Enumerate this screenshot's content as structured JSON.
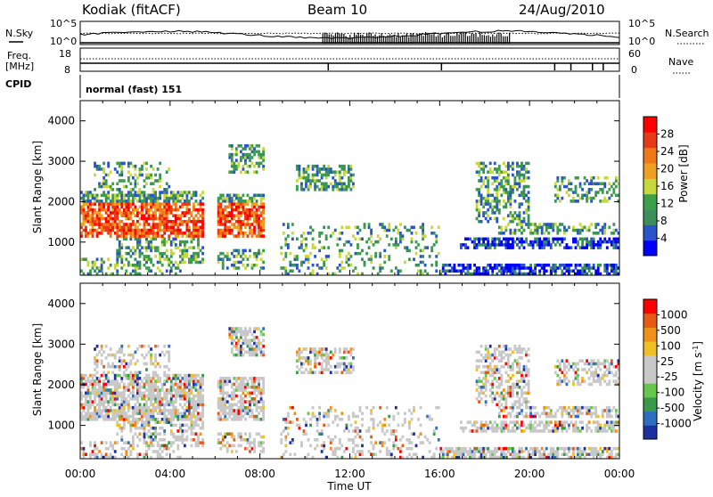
{
  "header": {
    "station": "Kodiak (fitACF)",
    "beam": "Beam 10",
    "date": "24/Aug/2010"
  },
  "top_panels": {
    "nsky_label": "N.Sky",
    "nsearch_label": "N.Search",
    "log_top_tick": "10^5",
    "log_bottom_tick": "10^0",
    "freq_label": "Freq.",
    "freq_unit": "[MHz]",
    "freq_ticks": [
      "18",
      "8"
    ],
    "nave_label": "Nave",
    "nave_ticks": [
      "60",
      "0"
    ],
    "cpid_label": "CPID",
    "cpid_text": "normal (fast) 151"
  },
  "colors": {
    "power_scale": [
      "#0000ff",
      "#2a55c8",
      "#3a8f5a",
      "#3ca04a",
      "#c8d83c",
      "#f0a020",
      "#f07818",
      "#e83a14",
      "#ff0000"
    ],
    "velocity_scale": [
      "#1e2fa0",
      "#2e6ec0",
      "#3a9a4c",
      "#66c84a",
      "#c8c8c8",
      "#c8c8c8",
      "#f0c020",
      "#f09018",
      "#e85a14",
      "#ff0000"
    ]
  },
  "chart_data": [
    {
      "type": "heatmap",
      "name": "power",
      "ylabel": "Slant Range [km]",
      "xlabel": "Time UT",
      "x_ticks": [
        "00:00",
        "04:00",
        "08:00",
        "12:00",
        "16:00",
        "20:00",
        "00:00"
      ],
      "y_ticks": [
        "1000",
        "2000",
        "3000",
        "4000"
      ],
      "ylim": [
        180,
        4500
      ],
      "colorbar_label": "Power [dB]",
      "colorbar_ticks": [
        "4",
        "8",
        "12",
        "16",
        "20",
        "24",
        "28"
      ],
      "colorbar_range": [
        0,
        30
      ]
    },
    {
      "type": "heatmap",
      "name": "velocity",
      "ylabel": "Slant Range [km]",
      "xlabel": "Time UT",
      "x_ticks": [
        "00:00",
        "04:00",
        "08:00",
        "12:00",
        "16:00",
        "20:00",
        "00:00"
      ],
      "y_ticks": [
        "1000",
        "2000",
        "3000",
        "4000"
      ],
      "ylim": [
        180,
        4500
      ],
      "colorbar_label": "Velocity [m s",
      "colorbar_label_sup": "-1",
      "colorbar_label_close": "]",
      "colorbar_ticks": [
        "1000",
        "500",
        "100",
        "25",
        "-25",
        "-100",
        "-500",
        "-1000"
      ]
    }
  ],
  "xlabel": "Time UT"
}
